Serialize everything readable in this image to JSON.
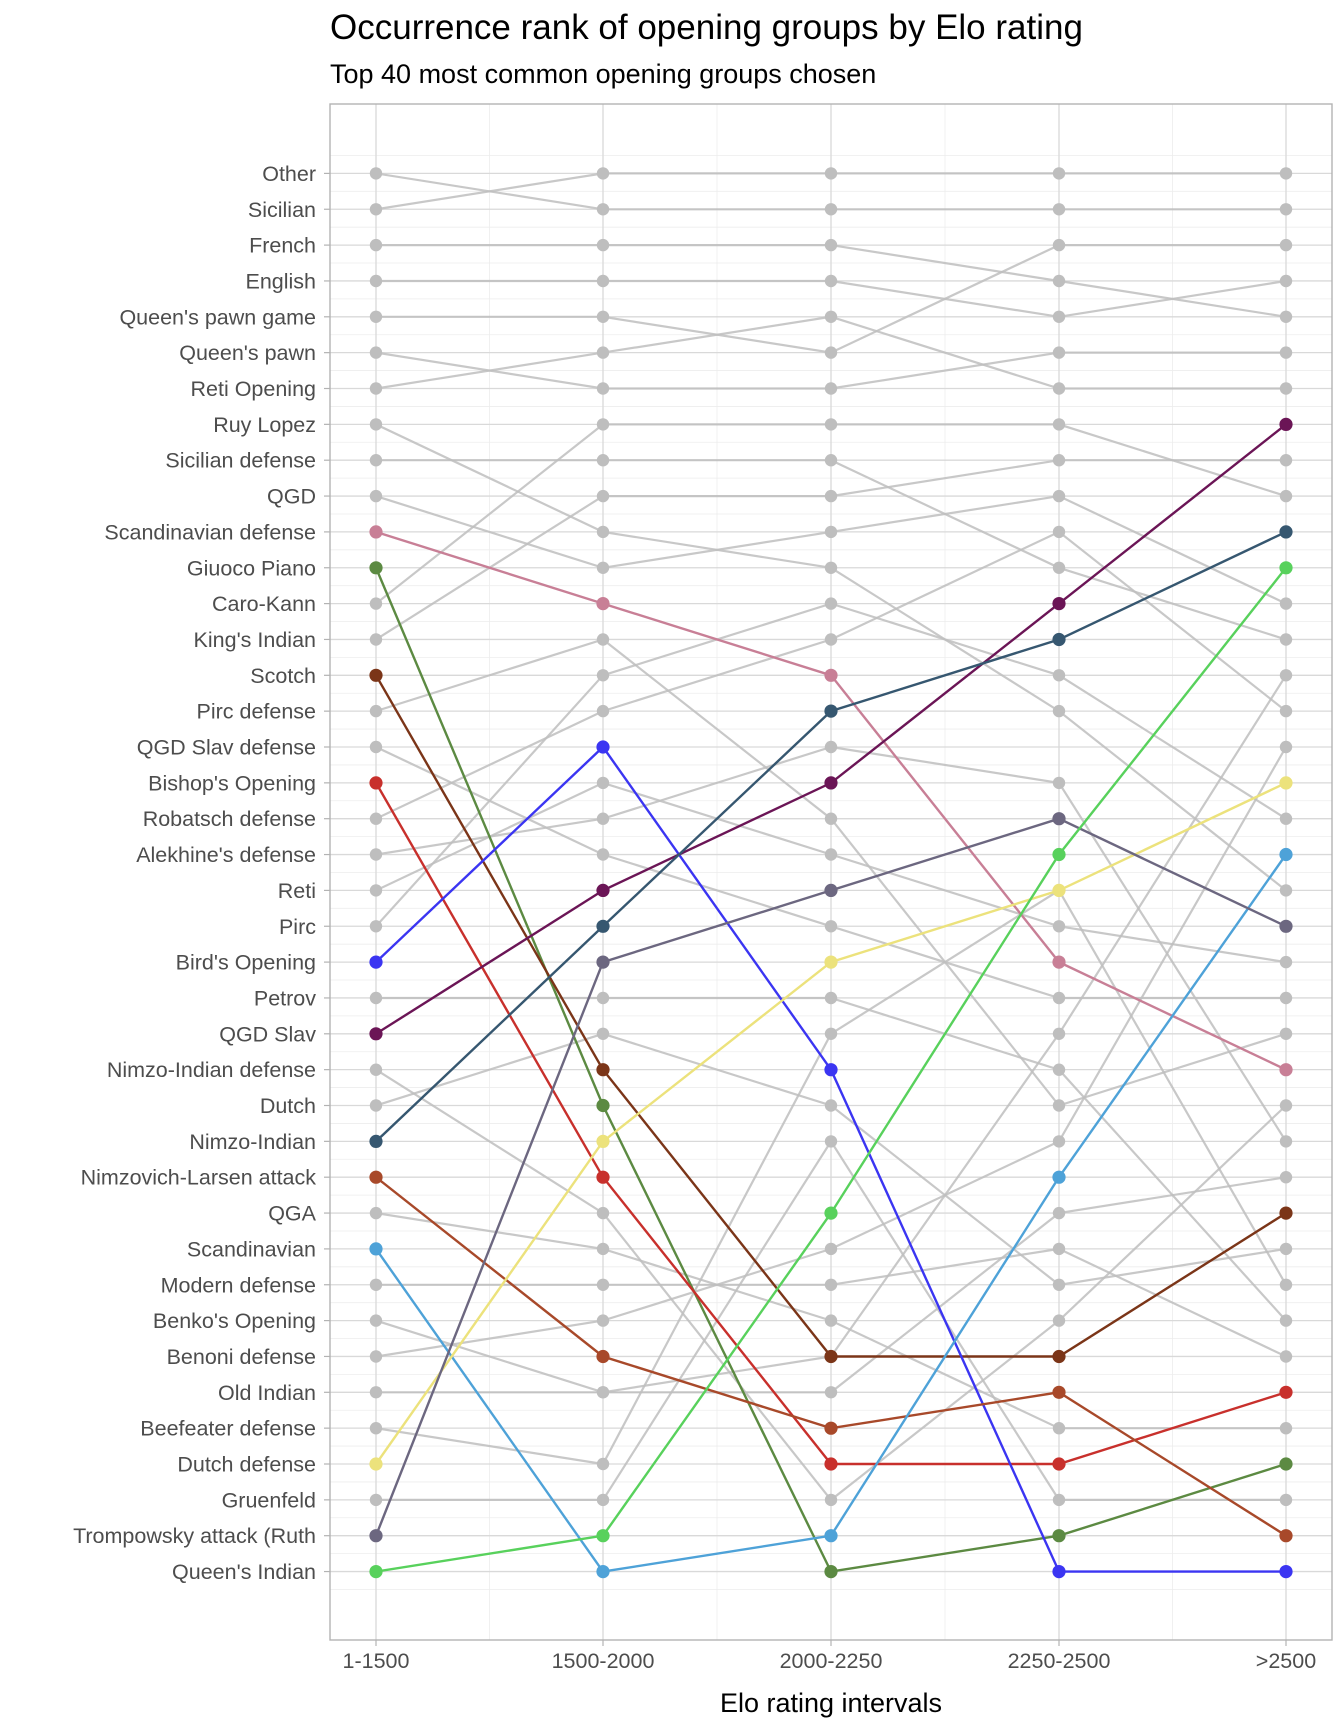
{
  "chart_data": {
    "type": "line",
    "title": "Occurrence rank of opening groups by Elo rating",
    "subtitle": "Top 40 most common opening groups chosen",
    "xlabel": "Elo rating intervals",
    "ylabel": "",
    "categories": [
      "1-1500",
      "1500-2000",
      "2000-2250",
      "2250-2500",
      ">2500"
    ],
    "ytick_labels": [
      "Other",
      "Sicilian",
      "French",
      "English",
      "Queen's pawn game",
      "Queen's pawn",
      "Reti Opening",
      "Ruy Lopez",
      "Sicilian defense",
      "QGD",
      "Scandinavian defense",
      "Giuoco Piano",
      "Caro-Kann",
      "King's Indian",
      "Scotch",
      "Pirc defense",
      "QGD Slav defense",
      "Bishop's Opening",
      "Robatsch defense",
      "Alekhine's defense",
      "Reti",
      "Pirc",
      "Bird's Opening",
      "Petrov",
      "QGD Slav",
      "Nimzo-Indian defense",
      "Dutch",
      "Nimzo-Indian",
      "Nimzovich-Larsen attack",
      "QGA",
      "Scandinavian",
      "Modern defense",
      "Benko's Opening",
      "Benoni defense",
      "Old Indian",
      "Beefeater defense",
      "Dutch defense",
      "Gruenfeld",
      "Trompowsky attack (Ruth",
      "Queen's Indian"
    ],
    "ylim": [
      0,
      41
    ],
    "y_reversed": true,
    "legend": "none",
    "grid": true,
    "highlighted_series": [
      {
        "start_label": "Scandinavian defense",
        "color": "#c87f96",
        "values": [
          11,
          13,
          15,
          23,
          26
        ]
      },
      {
        "start_label": "Giuoco Piano",
        "color": "#5c8a42",
        "values": [
          12,
          27,
          40,
          39,
          37
        ]
      },
      {
        "start_label": "Scotch",
        "color": "#7b3518",
        "values": [
          15,
          26,
          34,
          34,
          30
        ]
      },
      {
        "start_label": "Bishop's Opening",
        "color": "#c8302c",
        "values": [
          18,
          29,
          37,
          37,
          35
        ]
      },
      {
        "start_label": "Bird's Opening",
        "color": "#3b35f2",
        "values": [
          23,
          17,
          26,
          40,
          40
        ]
      },
      {
        "start_label": "QGD Slav",
        "color": "#6b1556",
        "values": [
          25,
          21,
          18,
          13,
          8
        ]
      },
      {
        "start_label": "Nimzo-Indian",
        "color": "#365770",
        "values": [
          28,
          22,
          16,
          14,
          11
        ]
      },
      {
        "start_label": "Nimzovich-Larsen attack",
        "color": "#a8492a",
        "values": [
          29,
          34,
          36,
          35,
          39
        ]
      },
      {
        "start_label": "Scandinavian",
        "color": "#4ea2d8",
        "values": [
          31,
          40,
          39,
          29,
          20
        ]
      },
      {
        "start_label": "Dutch defense",
        "color": "#ece27c",
        "values": [
          37,
          28,
          23,
          21,
          18
        ]
      },
      {
        "start_label": "Trompowsky attack (Ruth",
        "color": "#6c6780",
        "values": [
          39,
          23,
          21,
          19,
          22
        ]
      },
      {
        "start_label": "Queen's Indian",
        "color": "#58d15c",
        "values": [
          40,
          39,
          30,
          20,
          12
        ]
      }
    ],
    "background_series_color": "#bebebe",
    "background_series": [
      [
        1,
        2,
        2,
        2,
        2
      ],
      [
        2,
        1,
        1,
        1,
        1
      ],
      [
        3,
        3,
        3,
        4,
        5
      ],
      [
        4,
        4,
        4,
        5,
        4
      ],
      [
        5,
        5,
        6,
        3,
        3
      ],
      [
        6,
        7,
        7,
        6,
        6
      ],
      [
        7,
        6,
        5,
        7,
        7
      ],
      [
        8,
        11,
        12,
        16,
        21
      ],
      [
        9,
        9,
        9,
        12,
        14
      ],
      [
        10,
        12,
        11,
        10,
        13
      ],
      [
        13,
        8,
        8,
        8,
        10
      ],
      [
        14,
        10,
        10,
        9,
        9
      ],
      [
        16,
        14,
        19,
        27,
        25
      ],
      [
        17,
        20,
        22,
        24,
        24
      ],
      [
        19,
        16,
        14,
        11,
        16
      ],
      [
        20,
        19,
        17,
        18,
        28
      ],
      [
        21,
        18,
        20,
        22,
        23
      ],
      [
        22,
        15,
        13,
        15,
        19
      ],
      [
        24,
        24,
        24,
        26,
        33
      ],
      [
        26,
        30,
        38,
        33,
        27
      ],
      [
        27,
        25,
        27,
        32,
        31
      ],
      [
        30,
        31,
        33,
        36,
        36
      ],
      [
        32,
        32,
        32,
        31,
        34
      ],
      [
        33,
        35,
        35,
        30,
        29
      ],
      [
        34,
        33,
        31,
        28,
        17
      ],
      [
        35,
        35,
        34,
        25,
        15
      ],
      [
        36,
        37,
        25,
        21,
        32
      ],
      [
        38,
        38,
        28,
        38,
        38
      ]
    ]
  }
}
